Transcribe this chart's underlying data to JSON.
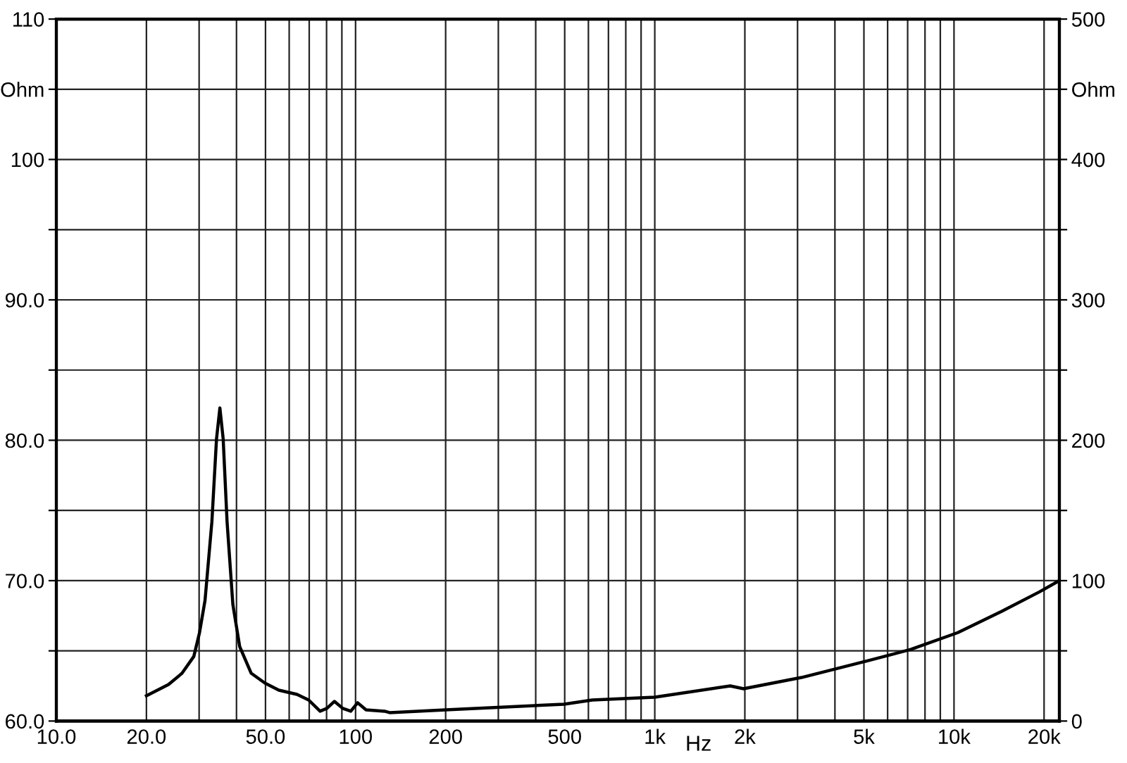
{
  "chart_data": {
    "type": "line",
    "xlabel": "Hz",
    "log": "x",
    "grid": true,
    "line_style": "solid",
    "marker": "none",
    "xlim": [
      10,
      22500
    ],
    "xticks": [
      {
        "value": 10,
        "label": "10.0"
      },
      {
        "value": 20,
        "label": "20.0"
      },
      {
        "value": 30,
        "label": null
      },
      {
        "value": 40,
        "label": null
      },
      {
        "value": 50,
        "label": "50.0"
      },
      {
        "value": 60,
        "label": null
      },
      {
        "value": 70,
        "label": null
      },
      {
        "value": 80,
        "label": null
      },
      {
        "value": 90,
        "label": null
      },
      100,
      200,
      {
        "value": 300,
        "label": null
      },
      {
        "value": 400,
        "label": null
      },
      500,
      {
        "value": 600,
        "label": null
      },
      {
        "value": 700,
        "label": null
      },
      {
        "value": 800,
        "label": null
      },
      {
        "value": 900,
        "label": null
      },
      {
        "value": 1000,
        "label": "1k"
      },
      {
        "value": 2000,
        "label": "2k"
      },
      {
        "value": 3000,
        "label": null
      },
      {
        "value": 4000,
        "label": null
      },
      {
        "value": 5000,
        "label": "5k"
      },
      {
        "value": 6000,
        "label": null
      },
      {
        "value": 7000,
        "label": null
      },
      {
        "value": 8000,
        "label": null
      },
      {
        "value": 9000,
        "label": null
      },
      {
        "value": 10000,
        "label": "10k"
      },
      {
        "value": 20000,
        "label": "20k"
      }
    ],
    "ylim": [
      60,
      110
    ],
    "yticks": [
      {
        "value": 60,
        "label": "60.0"
      },
      {
        "value": 65,
        "label": null
      },
      {
        "value": 70,
        "label": "70.0"
      },
      {
        "value": 75,
        "label": null
      },
      {
        "value": 80,
        "label": "80.0"
      },
      {
        "value": 85,
        "label": null
      },
      {
        "value": 90,
        "label": "90.0"
      },
      {
        "value": 95,
        "label": null
      },
      100,
      {
        "value": 105,
        "label": "Ohm"
      },
      110
    ],
    "y2lim": [
      0,
      500
    ],
    "y2ticks": [
      0,
      {
        "value": 50,
        "label": null
      },
      100,
      {
        "value": 150,
        "label": null
      },
      200,
      {
        "value": 250,
        "label": null
      },
      300,
      {
        "value": 350,
        "label": null
      },
      400,
      {
        "value": 450,
        "label": "Ohm"
      },
      500
    ],
    "series": [
      {
        "color": "#000000",
        "axis": "y2",
        "x": [
          20,
          23.7,
          26.3,
          28.8,
          30.1,
          31.4,
          33.1,
          34.3,
          35.2,
          36.1,
          37.2,
          38.9,
          41.0,
          44.8,
          49.8,
          55.4,
          63.7,
          69.7,
          76.1,
          80.2,
          85.0,
          90.6,
          96.4,
          101.6,
          108.4,
          125,
          130,
          200,
          497,
          618,
          1000,
          1787,
          1980,
          3090,
          5160,
          7170,
          10300,
          14400,
          19300,
          22500
        ],
        "values": [
          18,
          26,
          34,
          46,
          63,
          86,
          142,
          201,
          223,
          201,
          142,
          83,
          53,
          34,
          27,
          22,
          19,
          15,
          7,
          9,
          14,
          9,
          7,
          13,
          8,
          7,
          6,
          8,
          12,
          15,
          17,
          25,
          23,
          31,
          43,
          51,
          63,
          78,
          92,
          100
        ]
      }
    ]
  }
}
